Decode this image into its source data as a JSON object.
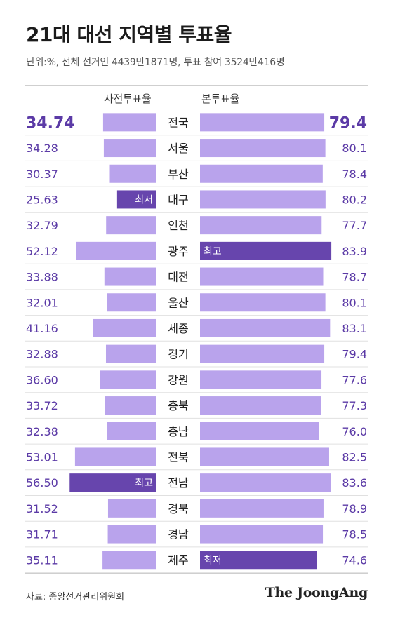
{
  "title": "21대 대선 지역별 투표율",
  "subtitle": "단위:%, 전체 선거인 4439만1871명, 투표 참여 3524만416명",
  "source": "자료: 중앙선거관리위원회",
  "brand": "The JoongAng",
  "colors": {
    "bar": "#b9a3ec",
    "bar_highlight": "#6745ad",
    "value_text": "#5b3aa6",
    "text": "#222222",
    "row_divider": "#e0e0e0"
  },
  "chart_data": [
    {
      "type": "bar",
      "title": "사전투표율",
      "orientation": "horizontal",
      "direction": "right-to-left",
      "categories": [
        "전국",
        "서울",
        "부산",
        "대구",
        "인천",
        "광주",
        "대전",
        "울산",
        "세종",
        "경기",
        "강원",
        "충북",
        "충남",
        "전북",
        "전남",
        "경북",
        "경남",
        "제주"
      ],
      "value_labels": [
        "34.74",
        "34.28",
        "30.37",
        "25.63",
        "32.79",
        "52.12",
        "33.88",
        "32.01",
        "41.16",
        "32.88",
        "36.60",
        "33.72",
        "32.38",
        "53.01",
        "56.50",
        "31.52",
        "31.71",
        "35.11"
      ],
      "values": [
        34.74,
        34.28,
        30.37,
        25.63,
        32.79,
        52.12,
        33.88,
        32.01,
        41.16,
        32.88,
        36.6,
        33.72,
        32.38,
        53.01,
        56.5,
        31.52,
        31.71,
        35.11
      ],
      "annotations": [
        {
          "category": "대구",
          "text": "최저"
        },
        {
          "category": "전남",
          "text": "최고"
        }
      ]
    },
    {
      "type": "bar",
      "title": "본투표율",
      "orientation": "horizontal",
      "direction": "left-to-right",
      "categories": [
        "전국",
        "서울",
        "부산",
        "대구",
        "인천",
        "광주",
        "대전",
        "울산",
        "세종",
        "경기",
        "강원",
        "충북",
        "충남",
        "전북",
        "전남",
        "경북",
        "경남",
        "제주"
      ],
      "value_labels": [
        "79.4",
        "80.1",
        "78.4",
        "80.2",
        "77.7",
        "83.9",
        "78.7",
        "80.1",
        "83.1",
        "79.4",
        "77.6",
        "77.3",
        "76.0",
        "82.5",
        "83.6",
        "78.9",
        "78.5",
        "74.6"
      ],
      "values": [
        79.4,
        80.1,
        78.4,
        80.2,
        77.7,
        83.9,
        78.7,
        80.1,
        83.1,
        79.4,
        77.6,
        77.3,
        76.0,
        82.5,
        83.6,
        78.9,
        78.5,
        74.6
      ],
      "annotations": [
        {
          "category": "광주",
          "text": "최고"
        },
        {
          "category": "제주",
          "text": "최저"
        }
      ]
    }
  ]
}
